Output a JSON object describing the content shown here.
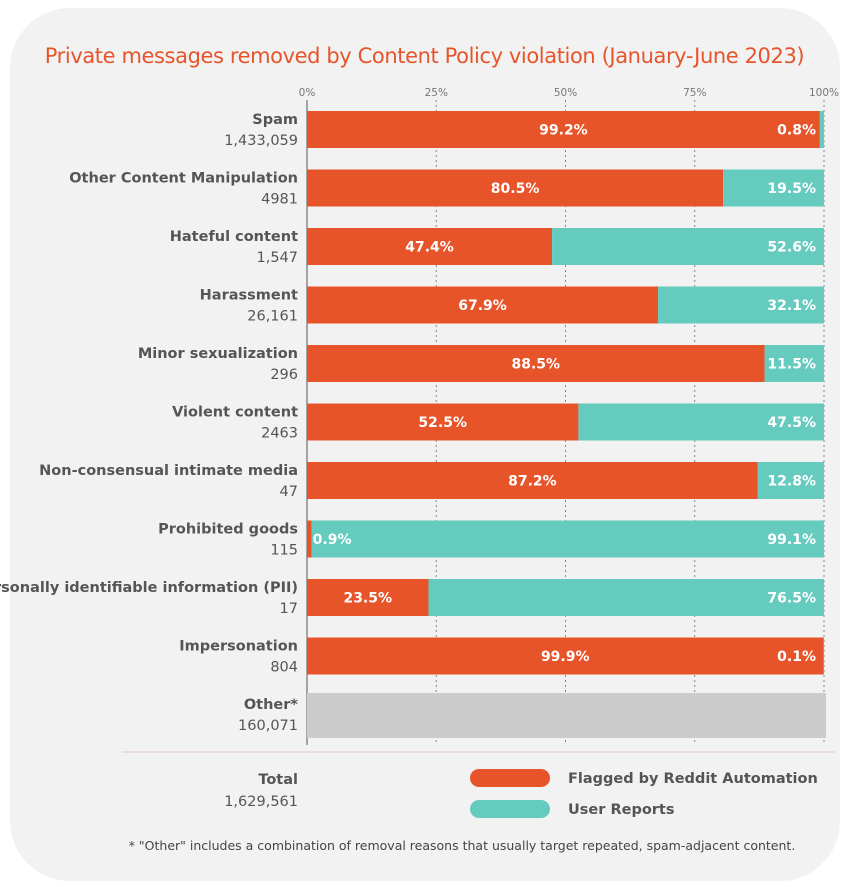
{
  "chart_data": {
    "type": "bar",
    "orientation": "horizontal",
    "stacked": true,
    "title": "Private messages removed by Content Policy violation (January-June 2023)",
    "xlim": [
      0,
      100
    ],
    "ticks": [
      "0%",
      "25%",
      "50%",
      "75%",
      "100%"
    ],
    "tick_values": [
      0,
      25,
      50,
      75,
      100
    ],
    "grid": true,
    "categories": [
      {
        "name": "Spam",
        "count": "1,433,059"
      },
      {
        "name": "Other Content Manipulation",
        "count": "4981"
      },
      {
        "name": "Hateful content",
        "count": "1,547"
      },
      {
        "name": "Harassment",
        "count": "26,161"
      },
      {
        "name": "Minor sexualization",
        "count": "296"
      },
      {
        "name": "Violent content",
        "count": "2463"
      },
      {
        "name": "Non-consensual intimate media",
        "count": "47"
      },
      {
        "name": "Prohibited goods",
        "count": "115"
      },
      {
        "name": "Personally identifiable information (PII)",
        "count": "17"
      },
      {
        "name": "Impersonation",
        "count": "804"
      },
      {
        "name": "Other*",
        "count": "160,071"
      }
    ],
    "series": [
      {
        "name": "Flagged by Reddit Automation",
        "color": "#e8542a",
        "values": [
          99.2,
          80.5,
          47.4,
          67.9,
          88.5,
          52.5,
          87.2,
          0.9,
          23.5,
          99.9,
          null
        ],
        "labels": [
          "99.2%",
          "80.5%",
          "47.4%",
          "67.9%",
          "88.5%",
          "52.5%",
          "87.2%",
          "0.9%",
          "23.5%",
          "99.9%",
          null
        ]
      },
      {
        "name": "User Reports",
        "color": "#66cbbf",
        "values": [
          0.8,
          19.5,
          52.6,
          32.1,
          11.5,
          47.5,
          12.8,
          99.1,
          76.5,
          0.1,
          null
        ],
        "labels": [
          "0.8%",
          "19.5%",
          "52.6%",
          "32.1%",
          "11.5%",
          "47.5%",
          "12.8%",
          "99.1%",
          "76.5%",
          "0.1%",
          null
        ]
      }
    ],
    "unsplit_color": "#cccccc",
    "total_label": "Total",
    "total_value": "1,629,561",
    "legend_position": "bottom",
    "footnote": "* \"Other\" includes a combination of removal reasons that usually target repeated, spam-adjacent content."
  }
}
